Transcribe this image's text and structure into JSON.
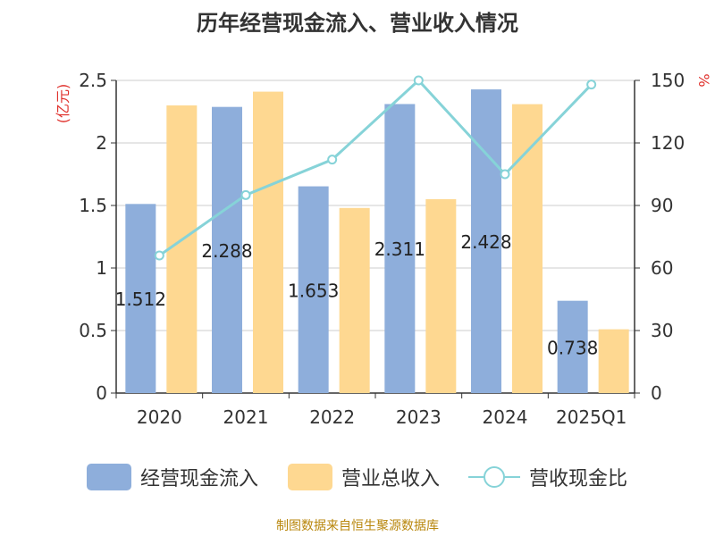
{
  "title": "历年经营现金流入、营业收入情况",
  "source_label": "制图数据来自恒生聚源数据库",
  "colors": {
    "cash_inflow": "#8eaedb",
    "revenue": "#fed891",
    "ratio": "#86d3d8",
    "left_unit": "#e0322d",
    "right_unit": "#e0322d"
  },
  "chart_data": {
    "type": "bar",
    "title": "历年经营现金流入、营业收入情况",
    "categories": [
      "2020",
      "2021",
      "2022",
      "2023",
      "2024",
      "2025Q1"
    ],
    "series": [
      {
        "name": "经营现金流入",
        "type": "bar",
        "axis": "left",
        "values": [
          1.512,
          2.288,
          1.653,
          2.311,
          2.428,
          0.738
        ],
        "data_labels": [
          "1.512",
          "2.288",
          "1.653",
          "2.311",
          "2.428",
          "0.738"
        ]
      },
      {
        "name": "营业总收入",
        "type": "bar",
        "axis": "left",
        "values": [
          2.3,
          2.41,
          1.48,
          1.55,
          2.31,
          0.51
        ]
      },
      {
        "name": "营收现金比",
        "type": "line",
        "axis": "right",
        "values": [
          66,
          95,
          112,
          150,
          105,
          148
        ]
      }
    ],
    "y_left": {
      "unit": "(亿元)",
      "min": 0,
      "max": 2.5,
      "ticks": [
        "0",
        "0.5",
        "1",
        "1.5",
        "2",
        "2.5"
      ]
    },
    "y_right": {
      "unit": "%",
      "min": 0,
      "max": 150,
      "ticks": [
        "0",
        "30",
        "60",
        "90",
        "120",
        "150"
      ]
    },
    "grid": true,
    "legend": "bottom"
  }
}
